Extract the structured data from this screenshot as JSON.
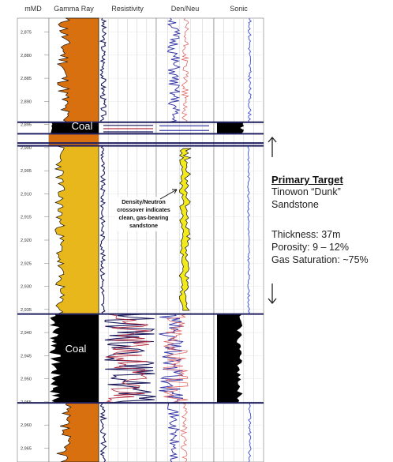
{
  "chart_data": {
    "type": "well-log",
    "track_headers": [
      "mMD",
      "Gamma Ray",
      "Resistivity",
      "Den/Neu",
      "Sonic"
    ],
    "depth_unit": "mMD",
    "depth_range": [
      2872,
      2968
    ],
    "depth_ticks": [
      "2,875",
      "2,880",
      "2,885",
      "2,890",
      "2,895",
      "2,900",
      "2,905",
      "2,910",
      "2,915",
      "2,920",
      "2,925",
      "2,930",
      "2,935",
      "2,940",
      "2,945",
      "2,950",
      "2,955",
      "2,960",
      "2,965"
    ],
    "horizons": [
      2894.5,
      2897.0,
      2899.0,
      2899.6,
      2936.0,
      2955.2
    ],
    "zones": [
      {
        "label": "Coal",
        "top": 2894.5,
        "base": 2897.0
      },
      {
        "label": "",
        "top": 2899.6,
        "base": 2936.0
      },
      {
        "label": "Coal",
        "top": 2936.0,
        "base": 2955.2
      }
    ],
    "annotations": {
      "coal_upper": "Coal",
      "coal_lower": "Coal",
      "crossover_line1": "Density/Neutron",
      "crossover_line2": "crossover indicates",
      "crossover_line3": "clean, gas-bearing",
      "crossover_line4": "sandstone"
    },
    "colors": {
      "gr_sand": "#e8b71b",
      "gr_shale": "#d9700f",
      "coal": "#000000",
      "crossover": "#f2ea1c",
      "density": "#3a3aa8",
      "neutron": "#e06a6a",
      "resistivity_deep": "#1e1b5e",
      "resistivity_shallow": "#b2263a",
      "sonic": "#4a5bd0",
      "horizon": "#202060"
    }
  },
  "target_panel": {
    "title": "Primary Target",
    "name_line1": "Tinowon “Dunk”",
    "name_line2": "Sandstone",
    "thickness": "Thickness: 37m",
    "porosity": "Porosity: 9 – 12%",
    "gas_saturation": "Gas Saturation: ~75%"
  }
}
